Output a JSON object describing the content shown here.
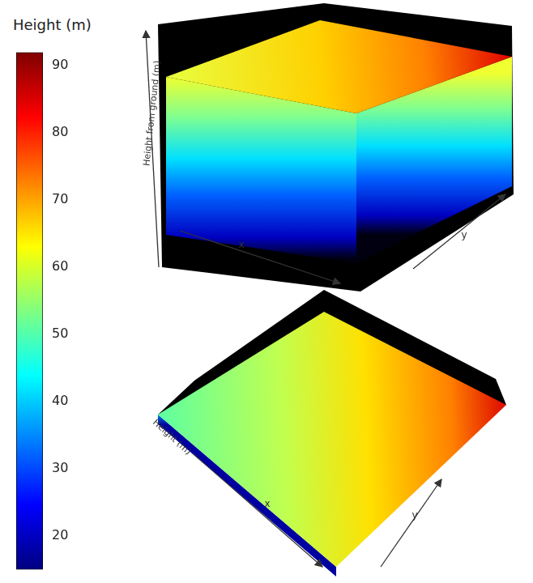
{
  "chart_data": {
    "type": "colorbar",
    "title": "Height (m)",
    "ylim": [
      15,
      92
    ],
    "yticks": [
      20,
      30,
      40,
      50,
      60,
      70,
      80,
      90
    ],
    "colors": [
      "#00007f",
      "#0000ff",
      "#0080ff",
      "#00ffff",
      "#80ff80",
      "#ffff00",
      "#ff8000",
      "#ff0000",
      "#7f0000"
    ],
    "grid": false
  },
  "panels": [
    {
      "axis_labels": {
        "z": "Height from ground (m)",
        "x": "x",
        "y": "y"
      }
    },
    {
      "axis_labels": {
        "z": "Height (m)",
        "x": "x",
        "y": "y"
      }
    }
  ]
}
